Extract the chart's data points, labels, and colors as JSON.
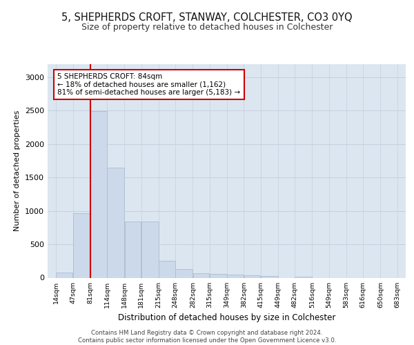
{
  "title": "5, SHEPHERDS CROFT, STANWAY, COLCHESTER, CO3 0YQ",
  "subtitle": "Size of property relative to detached houses in Colchester",
  "xlabel": "Distribution of detached houses by size in Colchester",
  "ylabel": "Number of detached properties",
  "bar_color": "#ccd9ea",
  "bar_edge_color": "#aabdd4",
  "grid_color": "#c5d0de",
  "background_color": "#dce6f0",
  "vline_x": 81,
  "vline_color": "#cc0000",
  "annotation_text": "5 SHEPHERDS CROFT: 84sqm\n← 18% of detached houses are smaller (1,162)\n81% of semi-detached houses are larger (5,183) →",
  "annotation_box_color": "#ffffff",
  "annotation_border_color": "#cc0000",
  "footer_text": "Contains HM Land Registry data © Crown copyright and database right 2024.\nContains public sector information licensed under the Open Government Licence v3.0.",
  "bins": [
    14,
    47,
    81,
    114,
    148,
    181,
    215,
    248,
    282,
    315,
    349,
    382,
    415,
    449,
    482,
    516,
    549,
    583,
    616,
    650,
    683
  ],
  "bin_labels": [
    "14sqm",
    "47sqm",
    "81sqm",
    "114sqm",
    "148sqm",
    "181sqm",
    "215sqm",
    "248sqm",
    "282sqm",
    "315sqm",
    "349sqm",
    "382sqm",
    "415sqm",
    "449sqm",
    "482sqm",
    "516sqm",
    "549sqm",
    "583sqm",
    "616sqm",
    "650sqm",
    "683sqm"
  ],
  "values": [
    75,
    970,
    2490,
    1650,
    840,
    840,
    255,
    130,
    70,
    60,
    50,
    40,
    25,
    0,
    18,
    0,
    0,
    0,
    0,
    0
  ],
  "ylim": [
    0,
    3200
  ],
  "yticks": [
    0,
    500,
    1000,
    1500,
    2000,
    2500,
    3000
  ]
}
